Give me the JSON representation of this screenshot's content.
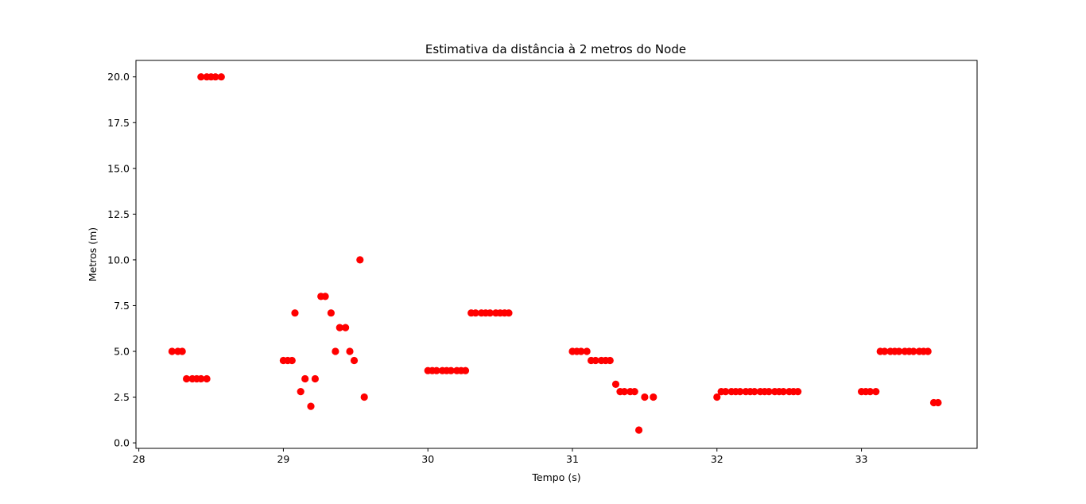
{
  "chart_data": {
    "type": "scatter",
    "title": "Estimativa da distância à 2 metros do Node",
    "xlabel": "Tempo (s)",
    "ylabel": "Metros (m)",
    "xlim": [
      27.98,
      33.8
    ],
    "ylim": [
      -0.3,
      20.9
    ],
    "xticks": [
      28,
      29,
      30,
      31,
      32,
      33
    ],
    "xtick_labels": [
      "28",
      "29",
      "30",
      "31",
      "32",
      "33"
    ],
    "yticks": [
      0.0,
      2.5,
      5.0,
      7.5,
      10.0,
      12.5,
      15.0,
      17.5,
      20.0
    ],
    "ytick_labels": [
      "0.0",
      "2.5",
      "5.0",
      "7.5",
      "10.0",
      "12.5",
      "15.0",
      "17.5",
      "20.0"
    ],
    "grid": false,
    "marker_color": "#ff0000",
    "points": [
      [
        28.23,
        5.0
      ],
      [
        28.27,
        5.0
      ],
      [
        28.3,
        5.0
      ],
      [
        28.33,
        3.5
      ],
      [
        28.37,
        3.5
      ],
      [
        28.4,
        3.5
      ],
      [
        28.43,
        3.5
      ],
      [
        28.47,
        3.5
      ],
      [
        28.43,
        20.0
      ],
      [
        28.47,
        20.0
      ],
      [
        28.5,
        20.0
      ],
      [
        28.53,
        20.0
      ],
      [
        28.57,
        20.0
      ],
      [
        29.0,
        4.5
      ],
      [
        29.03,
        4.5
      ],
      [
        29.06,
        4.5
      ],
      [
        29.08,
        7.1
      ],
      [
        29.12,
        2.8
      ],
      [
        29.15,
        3.5
      ],
      [
        29.19,
        2.0
      ],
      [
        29.22,
        3.5
      ],
      [
        29.26,
        8.0
      ],
      [
        29.29,
        8.0
      ],
      [
        29.33,
        7.1
      ],
      [
        29.36,
        5.0
      ],
      [
        29.39,
        6.3
      ],
      [
        29.43,
        6.3
      ],
      [
        29.46,
        5.0
      ],
      [
        29.49,
        4.5
      ],
      [
        29.53,
        10.0
      ],
      [
        29.56,
        2.5
      ],
      [
        30.0,
        3.95
      ],
      [
        30.03,
        3.95
      ],
      [
        30.06,
        3.95
      ],
      [
        30.1,
        3.95
      ],
      [
        30.13,
        3.95
      ],
      [
        30.16,
        3.95
      ],
      [
        30.2,
        3.95
      ],
      [
        30.23,
        3.95
      ],
      [
        30.26,
        3.95
      ],
      [
        30.3,
        7.1
      ],
      [
        30.33,
        7.1
      ],
      [
        30.37,
        7.1
      ],
      [
        30.4,
        7.1
      ],
      [
        30.43,
        7.1
      ],
      [
        30.47,
        7.1
      ],
      [
        30.5,
        7.1
      ],
      [
        30.53,
        7.1
      ],
      [
        30.56,
        7.1
      ],
      [
        31.0,
        5.0
      ],
      [
        31.03,
        5.0
      ],
      [
        31.06,
        5.0
      ],
      [
        31.1,
        5.0
      ],
      [
        31.13,
        4.5
      ],
      [
        31.16,
        4.5
      ],
      [
        31.2,
        4.5
      ],
      [
        31.23,
        4.5
      ],
      [
        31.26,
        4.5
      ],
      [
        31.3,
        3.2
      ],
      [
        31.33,
        2.8
      ],
      [
        31.36,
        2.8
      ],
      [
        31.4,
        2.8
      ],
      [
        31.43,
        2.8
      ],
      [
        31.46,
        0.7
      ],
      [
        31.5,
        2.5
      ],
      [
        31.56,
        2.5
      ],
      [
        32.0,
        2.5
      ],
      [
        32.03,
        2.8
      ],
      [
        32.06,
        2.8
      ],
      [
        32.1,
        2.8
      ],
      [
        32.13,
        2.8
      ],
      [
        32.16,
        2.8
      ],
      [
        32.2,
        2.8
      ],
      [
        32.23,
        2.8
      ],
      [
        32.26,
        2.8
      ],
      [
        32.3,
        2.8
      ],
      [
        32.33,
        2.8
      ],
      [
        32.36,
        2.8
      ],
      [
        32.4,
        2.8
      ],
      [
        32.43,
        2.8
      ],
      [
        32.46,
        2.8
      ],
      [
        32.5,
        2.8
      ],
      [
        32.53,
        2.8
      ],
      [
        32.56,
        2.8
      ],
      [
        33.0,
        2.8
      ],
      [
        33.03,
        2.8
      ],
      [
        33.06,
        2.8
      ],
      [
        33.1,
        2.8
      ],
      [
        33.13,
        5.0
      ],
      [
        33.16,
        5.0
      ],
      [
        33.2,
        5.0
      ],
      [
        33.23,
        5.0
      ],
      [
        33.26,
        5.0
      ],
      [
        33.3,
        5.0
      ],
      [
        33.33,
        5.0
      ],
      [
        33.36,
        5.0
      ],
      [
        33.4,
        5.0
      ],
      [
        33.43,
        5.0
      ],
      [
        33.46,
        5.0
      ],
      [
        33.5,
        2.2
      ],
      [
        33.53,
        2.2
      ]
    ]
  }
}
